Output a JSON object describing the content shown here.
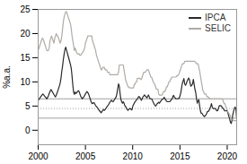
{
  "chart_data": {
    "type": "line",
    "title": "",
    "ylabel": "%a.a.",
    "xlim": [
      2000,
      2021
    ],
    "ylim": [
      -3,
      25
    ],
    "xticks": [
      2000,
      2005,
      2010,
      2015,
      2020
    ],
    "yticks": [
      0,
      5,
      10,
      15,
      20,
      25
    ],
    "legend": "upper right",
    "hlines": [
      {
        "value": 6.5,
        "line_style": "solid",
        "color": "#888888"
      },
      {
        "value": 4.5,
        "line_style": "dotted",
        "color": "#888888"
      },
      {
        "value": 2.5,
        "line_style": "solid",
        "color": "#888888"
      }
    ],
    "x": [
      2000.0,
      2000.083,
      2000.167,
      2000.25,
      2000.333,
      2000.417,
      2000.5,
      2000.583,
      2000.667,
      2000.75,
      2000.833,
      2000.917,
      2001.0,
      2001.083,
      2001.167,
      2001.25,
      2001.333,
      2001.417,
      2001.5,
      2001.583,
      2001.667,
      2001.75,
      2001.833,
      2001.917,
      2002.0,
      2002.083,
      2002.167,
      2002.25,
      2002.333,
      2002.417,
      2002.5,
      2002.583,
      2002.667,
      2002.75,
      2002.833,
      2002.917,
      2003.0,
      2003.083,
      2003.167,
      2003.25,
      2003.333,
      2003.417,
      2003.5,
      2003.583,
      2003.667,
      2003.75,
      2003.833,
      2003.917,
      2004.0,
      2004.083,
      2004.167,
      2004.25,
      2004.333,
      2004.417,
      2004.5,
      2004.583,
      2004.667,
      2004.75,
      2004.833,
      2004.917,
      2005.0,
      2005.083,
      2005.167,
      2005.25,
      2005.333,
      2005.417,
      2005.5,
      2005.583,
      2005.667,
      2005.75,
      2005.833,
      2005.917,
      2006.0,
      2006.083,
      2006.167,
      2006.25,
      2006.333,
      2006.417,
      2006.5,
      2006.583,
      2006.667,
      2006.75,
      2006.833,
      2006.917,
      2007.0,
      2007.083,
      2007.167,
      2007.25,
      2007.333,
      2007.417,
      2007.5,
      2007.583,
      2007.667,
      2007.75,
      2007.833,
      2007.917,
      2008.0,
      2008.083,
      2008.167,
      2008.25,
      2008.333,
      2008.417,
      2008.5,
      2008.583,
      2008.667,
      2008.75,
      2008.833,
      2008.917,
      2009.0,
      2009.083,
      2009.167,
      2009.25,
      2009.333,
      2009.417,
      2009.5,
      2009.583,
      2009.667,
      2009.75,
      2009.833,
      2009.917,
      2010.0,
      2010.083,
      2010.167,
      2010.25,
      2010.333,
      2010.417,
      2010.5,
      2010.583,
      2010.667,
      2010.75,
      2010.833,
      2010.917,
      2011.0,
      2011.083,
      2011.167,
      2011.25,
      2011.333,
      2011.417,
      2011.5,
      2011.583,
      2011.667,
      2011.75,
      2011.833,
      2011.917,
      2012.0,
      2012.083,
      2012.167,
      2012.25,
      2012.333,
      2012.417,
      2012.5,
      2012.583,
      2012.667,
      2012.75,
      2012.833,
      2012.917,
      2013.0,
      2013.083,
      2013.167,
      2013.25,
      2013.333,
      2013.417,
      2013.5,
      2013.583,
      2013.667,
      2013.75,
      2013.833,
      2013.917,
      2014.0,
      2014.083,
      2014.167,
      2014.25,
      2014.333,
      2014.417,
      2014.5,
      2014.583,
      2014.667,
      2014.75,
      2014.833,
      2014.917,
      2015.0,
      2015.083,
      2015.167,
      2015.25,
      2015.333,
      2015.417,
      2015.5,
      2015.583,
      2015.667,
      2015.75,
      2015.833,
      2015.917,
      2016.0,
      2016.083,
      2016.167,
      2016.25,
      2016.333,
      2016.417,
      2016.5,
      2016.583,
      2016.667,
      2016.75,
      2016.833,
      2016.917,
      2017.0,
      2017.083,
      2017.167,
      2017.25,
      2017.333,
      2017.417,
      2017.5,
      2017.583,
      2017.667,
      2017.75,
      2017.833,
      2017.917,
      2018.0,
      2018.083,
      2018.167,
      2018.25,
      2018.333,
      2018.417,
      2018.5,
      2018.583,
      2018.667,
      2018.75,
      2018.833,
      2018.917,
      2019.0,
      2019.083,
      2019.167,
      2019.25,
      2019.333,
      2019.417,
      2019.5,
      2019.583,
      2019.667,
      2019.75,
      2019.833,
      2019.917,
      2020.0,
      2020.083,
      2020.167,
      2020.25,
      2020.333,
      2020.417,
      2020.5,
      2020.583,
      2020.667,
      2020.75,
      2020.833,
      2020.917,
      2021.0
    ],
    "series": [
      {
        "name": "IPCA",
        "color": "#2a2a2a",
        "values": [
          6.2,
          6.4,
          6.6,
          6.9,
          7.1,
          7.3,
          7.5,
          7.3,
          7.1,
          6.9,
          6.7,
          6.5,
          6.8,
          7.1,
          7.6,
          8.0,
          8.4,
          8.3,
          7.9,
          7.7,
          7.4,
          7.1,
          6.9,
          7.3,
          7.7,
          8.2,
          8.7,
          9.2,
          9.8,
          10.8,
          12.2,
          13.3,
          14.7,
          15.8,
          16.7,
          17.2,
          16.6,
          16.0,
          15.4,
          14.8,
          14.2,
          13.6,
          12.8,
          11.2,
          9.3,
          7.9,
          7.4,
          7.9,
          7.6,
          7.8,
          8.0,
          8.2,
          8.0,
          7.5,
          7.0,
          6.8,
          6.5,
          6.7,
          6.9,
          7.2,
          7.5,
          7.8,
          8.0,
          7.8,
          7.5,
          7.0,
          6.5,
          6.0,
          5.6,
          5.5,
          5.7,
          5.7,
          5.4,
          5.1,
          4.9,
          4.7,
          4.5,
          4.2,
          4.0,
          3.8,
          3.6,
          3.9,
          4.1,
          4.3,
          4.1,
          4.3,
          4.5,
          4.8,
          5.0,
          5.2,
          5.5,
          5.8,
          6.0,
          6.2,
          6.0,
          5.9,
          6.1,
          6.4,
          6.6,
          6.9,
          7.6,
          8.6,
          9.6,
          9.1,
          7.6,
          6.4,
          5.9,
          5.6,
          5.9,
          5.6,
          5.1,
          4.9,
          4.6,
          4.3,
          4.1,
          4.3,
          4.5,
          4.5,
          4.3,
          4.2,
          4.9,
          5.3,
          5.6,
          5.9,
          6.1,
          6.3,
          6.5,
          6.8,
          7.0,
          6.8,
          6.5,
          6.2,
          6.5,
          6.9,
          7.1,
          7.3,
          7.1,
          6.9,
          6.7,
          7.0,
          7.3,
          6.9,
          6.5,
          6.5,
          6.5,
          6.2,
          5.8,
          5.5,
          5.2,
          5.0,
          5.2,
          5.5,
          5.6,
          5.8,
          5.6,
          5.9,
          6.1,
          6.3,
          6.5,
          6.5,
          6.8,
          6.5,
          6.3,
          6.0,
          5.9,
          5.9,
          5.9,
          5.9,
          6.1,
          6.3,
          6.5,
          7.0,
          7.2,
          6.8,
          6.7,
          6.5,
          6.5,
          6.5,
          6.6,
          6.6,
          7.1,
          7.7,
          8.7,
          9.7,
          10.2,
          10.7,
          9.6,
          9.3,
          9.6,
          10.1,
          10.5,
          10.8,
          10.5,
          9.6,
          9.1,
          9.3,
          9.6,
          10.5,
          9.5,
          8.5,
          7.8,
          6.5,
          5.6,
          6.1,
          6.3,
          5.0,
          4.0,
          3.5,
          3.5,
          3.2,
          3.0,
          2.8,
          3.0,
          3.2,
          3.5,
          3.9,
          3.9,
          4.1,
          4.5,
          4.9,
          5.5,
          4.8,
          4.5,
          4.5,
          4.5,
          4.5,
          4.2,
          4.0,
          4.1,
          4.6,
          5.1,
          5.1,
          5.1,
          4.9,
          4.6,
          4.5,
          4.2,
          4.0,
          4.0,
          4.1,
          4.0,
          3.5,
          2.9,
          2.4,
          1.7,
          1.4,
          2.0,
          3.1,
          3.9,
          4.5,
          4.8,
          4.5,
          2.5
        ]
      },
      {
        "name": "SELIC",
        "color": "#b0aba5",
        "values": [
          16.5,
          17.0,
          17.5,
          18.0,
          18.5,
          19.0,
          19.0,
          18.5,
          18.0,
          17.5,
          17.0,
          16.5,
          16.5,
          16.5,
          17.0,
          18.5,
          19.0,
          19.5,
          19.0,
          18.5,
          18.0,
          19.0,
          19.5,
          20.0,
          19.5,
          19.5,
          19.0,
          18.5,
          18.0,
          18.5,
          19.5,
          21.0,
          22.5,
          23.5,
          24.0,
          24.5,
          24.5,
          24.0,
          23.5,
          23.0,
          22.5,
          22.0,
          21.0,
          19.5,
          18.5,
          17.5,
          16.5,
          17.0,
          16.5,
          16.0,
          15.8,
          15.8,
          15.8,
          15.5,
          15.5,
          15.8,
          16.0,
          16.2,
          16.5,
          17.0,
          18.0,
          18.5,
          19.0,
          19.5,
          19.5,
          19.5,
          19.5,
          19.5,
          19.5,
          18.5,
          18.0,
          17.5,
          17.0,
          16.5,
          15.5,
          15.0,
          14.5,
          14.0,
          13.5,
          13.0,
          12.5,
          12.5,
          13.0,
          13.0,
          13.0,
          12.5,
          12.5,
          12.5,
          12.0,
          12.0,
          12.0,
          11.5,
          11.5,
          11.5,
          11.5,
          11.5,
          11.5,
          11.5,
          11.5,
          11.5,
          11.5,
          11.5,
          12.0,
          13.5,
          13.5,
          13.5,
          13.5,
          13.5,
          13.5,
          12.5,
          11.5,
          10.5,
          10.0,
          9.5,
          9.0,
          9.0,
          8.75,
          8.75,
          8.75,
          8.75,
          8.75,
          8.75,
          9.5,
          9.5,
          10.0,
          10.0,
          10.75,
          10.75,
          10.75,
          10.75,
          10.5,
          10.5,
          11.0,
          11.5,
          12.0,
          12.0,
          12.0,
          12.25,
          12.5,
          12.5,
          12.5,
          12.0,
          11.5,
          11.0,
          11.0,
          10.5,
          10.0,
          9.75,
          9.5,
          9.0,
          8.5,
          8.5,
          8.5,
          7.5,
          7.25,
          7.25,
          7.25,
          7.25,
          7.5,
          8.0,
          8.0,
          8.0,
          8.5,
          9.0,
          9.0,
          9.5,
          10.0,
          10.0,
          10.5,
          10.75,
          11.0,
          11.0,
          11.0,
          11.0,
          11.0,
          11.0,
          11.25,
          11.25,
          11.5,
          11.75,
          12.25,
          12.75,
          13.25,
          13.75,
          13.75,
          13.75,
          14.25,
          14.25,
          14.25,
          14.25,
          14.25,
          14.25,
          14.25,
          14.25,
          14.25,
          14.25,
          14.25,
          14.25,
          14.25,
          14.25,
          14.0,
          13.75,
          13.75,
          13.75,
          13.0,
          12.25,
          11.25,
          10.25,
          9.25,
          8.25,
          8.0,
          7.5,
          7.5,
          7.5,
          7.0,
          7.0,
          6.75,
          6.75,
          6.5,
          6.5,
          6.5,
          6.5,
          6.5,
          6.5,
          6.5,
          6.5,
          6.5,
          6.5,
          6.5,
          6.5,
          6.5,
          6.5,
          6.5,
          6.5,
          6.5,
          6.0,
          5.5,
          5.5,
          5.0,
          4.5,
          4.25,
          3.75,
          3.5,
          3.25,
          3.0,
          2.25,
          2.25,
          2.25,
          2.0,
          2.0,
          2.0,
          2.0,
          2.0
        ]
      }
    ]
  }
}
